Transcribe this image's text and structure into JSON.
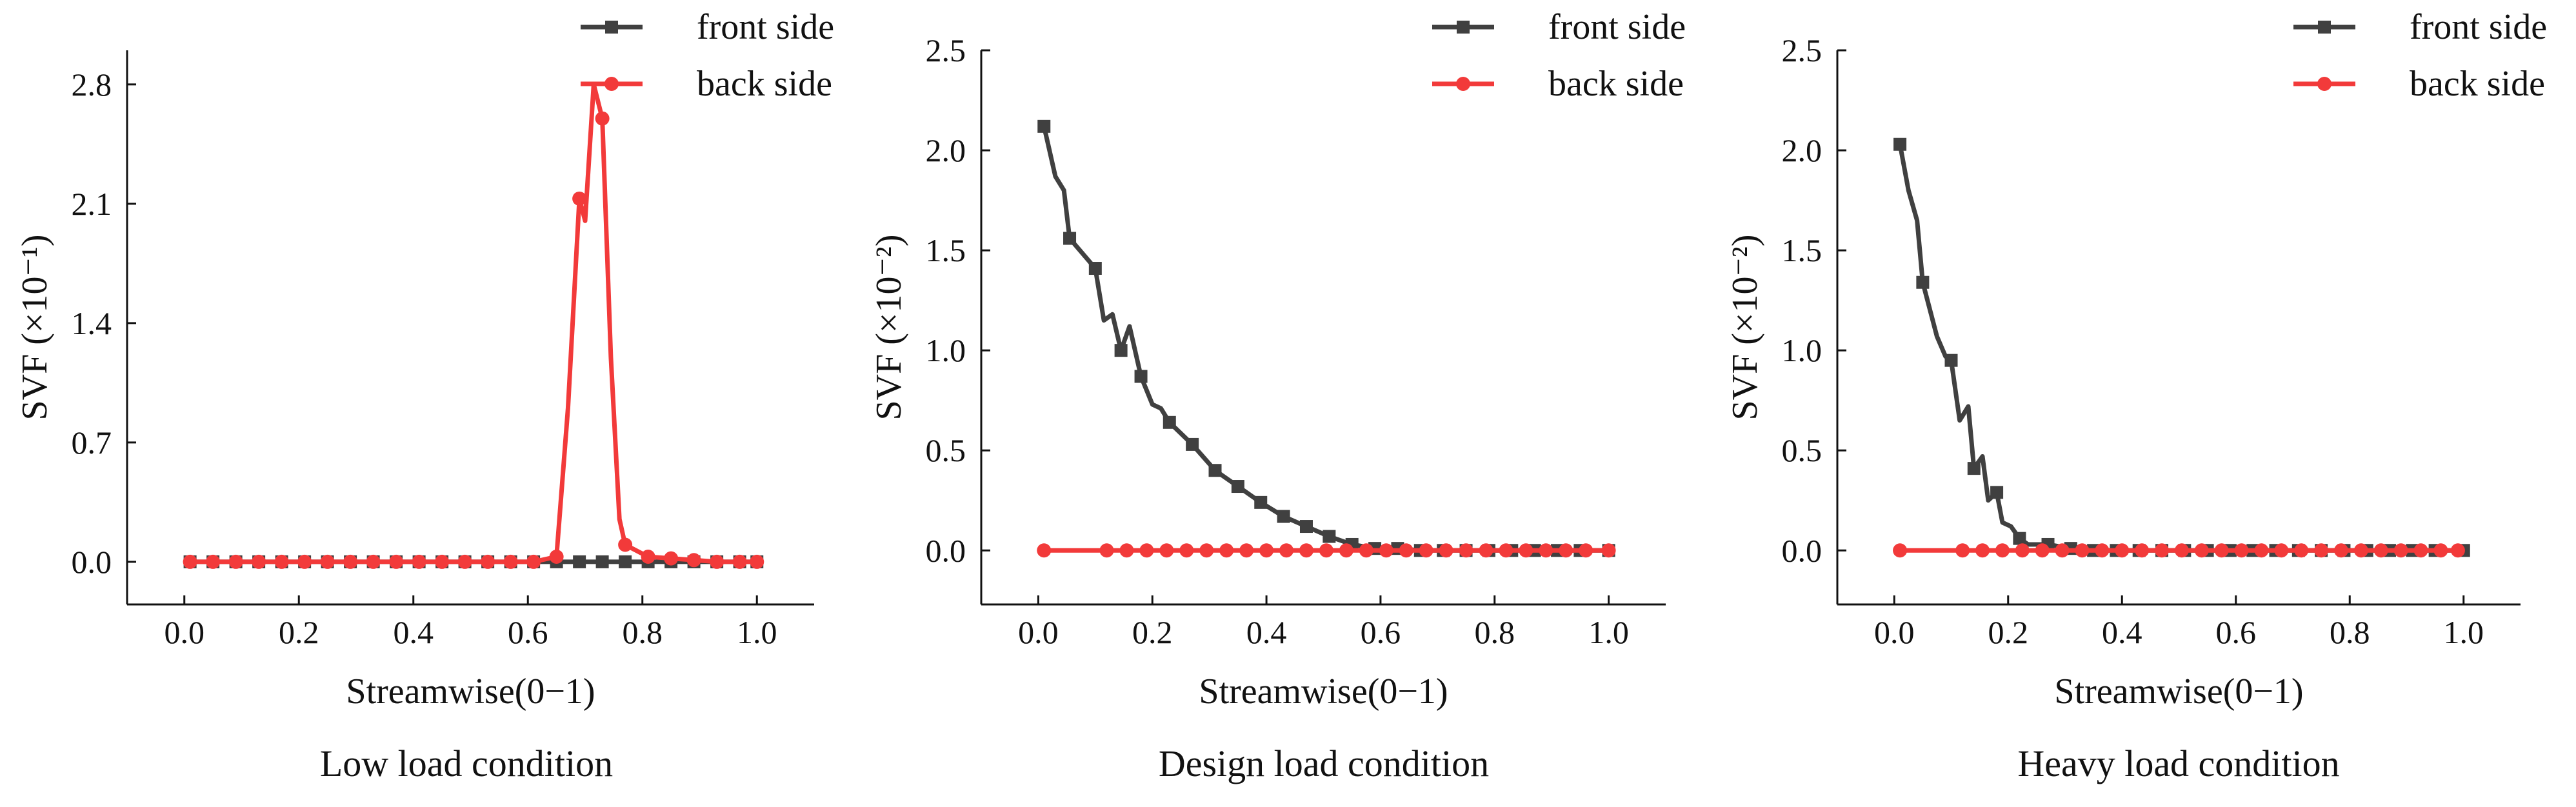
{
  "colors": {
    "front": "#404040",
    "back": "#f23a3a",
    "axis": "#111111"
  },
  "chart_data": [
    {
      "type": "line",
      "caption": "Low load condition",
      "xlabel": "Streamwise(0−1)",
      "ylabel": "SVF (×10⁻¹)",
      "xlim": [
        -0.1,
        1.1
      ],
      "ylim": [
        -0.25,
        3.0
      ],
      "xticks": [
        0.0,
        0.2,
        0.4,
        0.6,
        0.8,
        1.0
      ],
      "xtick_labels": [
        "0.0",
        "0.2",
        "0.4",
        "0.6",
        "0.8",
        "1.0"
      ],
      "yticks": [
        0.0,
        0.7,
        1.4,
        2.1,
        2.8
      ],
      "ytick_labels": [
        "0.0",
        "0.7",
        "1.4",
        "2.1",
        "2.8"
      ],
      "legend_position": "top-right",
      "series": [
        {
          "name": "front side",
          "color": "#404040",
          "marker": "square",
          "x": [
            0.01,
            0.05,
            0.09,
            0.13,
            0.17,
            0.21,
            0.25,
            0.29,
            0.33,
            0.37,
            0.41,
            0.45,
            0.49,
            0.53,
            0.57,
            0.61,
            0.65,
            0.69,
            0.73,
            0.77,
            0.81,
            0.85,
            0.89,
            0.93,
            0.97,
            1.0
          ],
          "y": [
            0,
            0,
            0,
            0,
            0,
            0,
            0,
            0,
            0,
            0,
            0,
            0,
            0,
            0,
            0,
            0,
            0,
            0,
            0,
            0,
            0,
            0,
            0,
            0,
            0,
            0
          ]
        },
        {
          "name": "back side",
          "color": "#f23a3a",
          "marker": "circle",
          "x": [
            0.01,
            0.05,
            0.09,
            0.13,
            0.17,
            0.21,
            0.25,
            0.29,
            0.33,
            0.37,
            0.41,
            0.45,
            0.49,
            0.53,
            0.57,
            0.61,
            0.65,
            0.67,
            0.69,
            0.7,
            0.715,
            0.73,
            0.745,
            0.76,
            0.77,
            0.81,
            0.85,
            0.89,
            0.93,
            0.97,
            1.0
          ],
          "y": [
            0,
            0,
            0,
            0,
            0,
            0,
            0,
            0,
            0,
            0,
            0,
            0,
            0,
            0,
            0,
            0,
            0.03,
            0.9,
            2.13,
            2.0,
            2.8,
            2.6,
            1.2,
            0.25,
            0.1,
            0.03,
            0.02,
            0.01,
            0,
            0,
            0
          ],
          "markers": [
            true,
            true,
            true,
            true,
            true,
            true,
            true,
            true,
            true,
            true,
            true,
            true,
            true,
            true,
            true,
            true,
            true,
            false,
            true,
            false,
            false,
            true,
            false,
            false,
            true,
            true,
            true,
            true,
            true,
            true,
            true
          ]
        }
      ]
    },
    {
      "type": "line",
      "caption": "Design load condition",
      "xlabel": "Streamwise(0−1)",
      "ylabel": "SVF (×10⁻²)",
      "xlim": [
        -0.1,
        1.1
      ],
      "ylim": [
        -0.27,
        2.5
      ],
      "xticks": [
        0.0,
        0.2,
        0.4,
        0.6,
        0.8,
        1.0
      ],
      "xtick_labels": [
        "0.0",
        "0.2",
        "0.4",
        "0.6",
        "0.8",
        "1.0"
      ],
      "yticks": [
        0.0,
        0.5,
        1.0,
        1.5,
        2.0,
        2.5
      ],
      "ytick_labels": [
        "0.0",
        "0.5",
        "1.0",
        "1.5",
        "2.0",
        "2.5"
      ],
      "legend_position": "top-right",
      "series": [
        {
          "name": "front side",
          "color": "#404040",
          "marker": "square",
          "x": [
            0.01,
            0.03,
            0.045,
            0.055,
            0.1,
            0.115,
            0.13,
            0.145,
            0.16,
            0.18,
            0.2,
            0.215,
            0.23,
            0.27,
            0.31,
            0.35,
            0.39,
            0.43,
            0.47,
            0.51,
            0.55,
            0.59,
            0.63,
            0.67,
            0.71,
            0.75,
            0.79,
            0.83,
            0.87,
            0.91,
            0.95,
            1.0
          ],
          "y": [
            2.12,
            1.87,
            1.8,
            1.56,
            1.41,
            1.15,
            1.18,
            1.0,
            1.12,
            0.87,
            0.73,
            0.71,
            0.64,
            0.53,
            0.4,
            0.32,
            0.24,
            0.17,
            0.12,
            0.07,
            0.03,
            0.01,
            0.01,
            0.0,
            0.0,
            0.0,
            0.0,
            0.0,
            0.0,
            0.0,
            0.0,
            0.0
          ],
          "markers": [
            true,
            false,
            false,
            true,
            true,
            false,
            false,
            true,
            false,
            true,
            false,
            false,
            true,
            true,
            true,
            true,
            true,
            true,
            true,
            true,
            true,
            true,
            true,
            true,
            true,
            true,
            true,
            true,
            true,
            true,
            true,
            true
          ]
        },
        {
          "name": "back side",
          "color": "#f23a3a",
          "marker": "circle",
          "x": [
            0.01,
            0.12,
            0.155,
            0.19,
            0.225,
            0.26,
            0.295,
            0.33,
            0.365,
            0.4,
            0.435,
            0.47,
            0.505,
            0.54,
            0.575,
            0.61,
            0.645,
            0.68,
            0.715,
            0.75,
            0.785,
            0.82,
            0.855,
            0.89,
            0.925,
            0.96,
            1.0
          ],
          "y": [
            0,
            0,
            0,
            0,
            0,
            0,
            0,
            0,
            0,
            0,
            0,
            0,
            0,
            0,
            0,
            0,
            0,
            0,
            0,
            0,
            0,
            0,
            0,
            0,
            0,
            0,
            0
          ]
        }
      ]
    },
    {
      "type": "line",
      "caption": "Heavy load condition",
      "xlabel": "Streamwise(0−1)",
      "ylabel": "SVF (×10⁻²)",
      "xlim": [
        -0.1,
        1.1
      ],
      "ylim": [
        -0.27,
        2.5
      ],
      "xticks": [
        0.0,
        0.2,
        0.4,
        0.6,
        0.8,
        1.0
      ],
      "xtick_labels": [
        "0.0",
        "0.2",
        "0.4",
        "0.6",
        "0.8",
        "1.0"
      ],
      "yticks": [
        0.0,
        0.5,
        1.0,
        1.5,
        2.0,
        2.5
      ],
      "ytick_labels": [
        "0.0",
        "0.5",
        "1.0",
        "1.5",
        "2.0",
        "2.5"
      ],
      "legend_position": "top-right",
      "series": [
        {
          "name": "front side",
          "color": "#404040",
          "marker": "square",
          "x": [
            0.01,
            0.025,
            0.04,
            0.05,
            0.075,
            0.09,
            0.1,
            0.115,
            0.13,
            0.14,
            0.155,
            0.165,
            0.18,
            0.19,
            0.205,
            0.22,
            0.235,
            0.27,
            0.31,
            0.35,
            0.39,
            0.43,
            0.47,
            0.51,
            0.55,
            0.59,
            0.63,
            0.67,
            0.71,
            0.75,
            0.79,
            0.83,
            0.87,
            0.91,
            0.95,
            1.0
          ],
          "y": [
            2.03,
            1.8,
            1.65,
            1.34,
            1.07,
            0.97,
            0.95,
            0.65,
            0.72,
            0.41,
            0.47,
            0.25,
            0.29,
            0.14,
            0.12,
            0.06,
            0.03,
            0.03,
            0.01,
            0,
            0,
            0,
            0,
            0,
            0,
            0,
            0,
            0,
            0,
            0,
            0,
            0,
            0,
            0,
            0,
            0
          ],
          "markers": [
            true,
            false,
            false,
            true,
            false,
            false,
            true,
            false,
            false,
            true,
            false,
            false,
            true,
            false,
            false,
            true,
            false,
            true,
            true,
            true,
            true,
            true,
            true,
            true,
            true,
            true,
            true,
            true,
            true,
            true,
            true,
            true,
            true,
            true,
            true,
            true
          ]
        },
        {
          "name": "back side",
          "color": "#f23a3a",
          "marker": "circle",
          "x": [
            0.01,
            0.12,
            0.155,
            0.19,
            0.225,
            0.26,
            0.295,
            0.33,
            0.365,
            0.4,
            0.435,
            0.47,
            0.505,
            0.54,
            0.575,
            0.61,
            0.645,
            0.68,
            0.715,
            0.75,
            0.785,
            0.82,
            0.855,
            0.89,
            0.925,
            0.96,
            0.99
          ],
          "y": [
            0,
            0,
            0,
            0,
            0,
            0,
            0,
            0,
            0,
            0,
            0,
            0,
            0,
            0,
            0,
            0,
            0,
            0,
            0,
            0,
            0,
            0,
            0,
            0,
            0,
            0,
            0
          ]
        }
      ]
    }
  ]
}
